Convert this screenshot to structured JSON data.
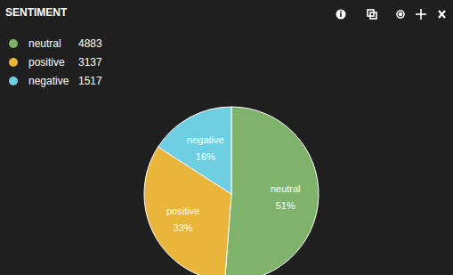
{
  "chart_data": {
    "type": "pie",
    "title": "SENTIMENT",
    "categories": [
      "neutral",
      "positive",
      "negative"
    ],
    "values": [
      4883,
      3137,
      1517
    ],
    "percent_labels": [
      "51%",
      "33%",
      "16%"
    ],
    "colors": [
      "#7fb36c",
      "#e9b53b",
      "#6fcfe2"
    ],
    "legend": "top-left",
    "data_labels": true
  }
}
